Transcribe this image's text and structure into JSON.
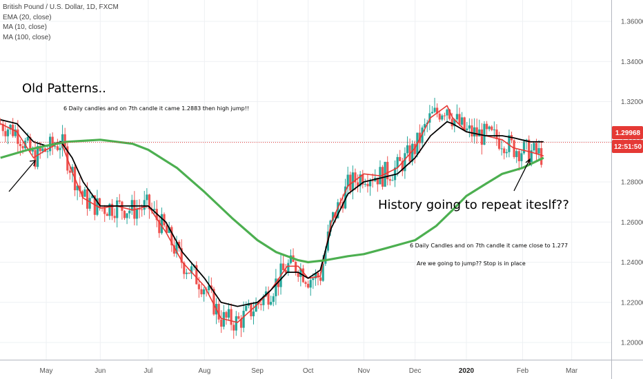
{
  "legend": {
    "symbol": "British Pound / U.S. Dollar, 1D, FXCM",
    "ema": "EMA (20, close)",
    "ma10": "MA (10, close)",
    "ma100": "MA (100, close)"
  },
  "price_badge": {
    "price": "1.29968",
    "timer": "12:51:50",
    "color": "#e53935"
  },
  "colors": {
    "up": "#26a69a",
    "down": "#ef5350",
    "ema": "#e53935",
    "ma10": "#000000",
    "ma100": "#4caf50",
    "badge": "#e53935"
  },
  "annotations": {
    "old_patterns": "Old Patterns..",
    "note_old": "6 Daily candles and on 7th candle it came 1.2883 then high jump!!",
    "history": "History going to repeat iteslf??",
    "note_new": "6 Daily Candles and on 7th candle it came close to 1.277",
    "question": "Are we going to jump?? Stop is in place"
  },
  "chart_data": {
    "type": "line",
    "title": "British Pound / U.S. Dollar, 1D, FXCM",
    "y_ticks": [
      "1.36000",
      "1.34000",
      "1.32000",
      "1.30000",
      "1.28000",
      "1.26000",
      "1.24000",
      "1.22000",
      "1.20000"
    ],
    "x_ticks": [
      {
        "label": "May",
        "t": 0.83
      },
      {
        "label": "Jun",
        "t": 1.81
      },
      {
        "label": "Jul",
        "t": 2.68
      },
      {
        "label": "Aug",
        "t": 3.7
      },
      {
        "label": "Sep",
        "t": 4.66
      },
      {
        "label": "Oct",
        "t": 5.58
      },
      {
        "label": "Nov",
        "t": 6.59
      },
      {
        "label": "Dec",
        "t": 7.52
      },
      {
        "label": "2020",
        "t": 8.45,
        "bold": true
      },
      {
        "label": "Feb",
        "t": 9.47
      },
      {
        "label": "Mar",
        "t": 10.36
      }
    ],
    "ylim": [
      1.185,
      1.37
    ],
    "current_price": 1.29968,
    "series": [
      {
        "name": "EMA (20, close)",
        "points": [
          [
            0,
            1.309
          ],
          [
            0.3,
            1.305
          ],
          [
            0.6,
            1.292
          ],
          [
            0.83,
            1.296
          ],
          [
            1.1,
            1.3
          ],
          [
            1.3,
            1.285
          ],
          [
            1.5,
            1.272
          ],
          [
            1.81,
            1.267
          ],
          [
            2.1,
            1.268
          ],
          [
            2.4,
            1.266
          ],
          [
            2.68,
            1.268
          ],
          [
            3.0,
            1.255
          ],
          [
            3.3,
            1.24
          ],
          [
            3.7,
            1.228
          ],
          [
            4.0,
            1.212
          ],
          [
            4.3,
            1.21
          ],
          [
            4.66,
            1.219
          ],
          [
            4.9,
            1.226
          ],
          [
            5.2,
            1.238
          ],
          [
            5.4,
            1.238
          ],
          [
            5.58,
            1.232
          ],
          [
            5.8,
            1.233
          ],
          [
            6.0,
            1.26
          ],
          [
            6.3,
            1.278
          ],
          [
            6.59,
            1.284
          ],
          [
            6.9,
            1.283
          ],
          [
            7.2,
            1.287
          ],
          [
            7.52,
            1.297
          ],
          [
            7.8,
            1.312
          ],
          [
            8.1,
            1.318
          ],
          [
            8.2,
            1.312
          ],
          [
            8.45,
            1.305
          ],
          [
            8.8,
            1.303
          ],
          [
            9.1,
            1.301
          ],
          [
            9.3,
            1.297
          ],
          [
            9.6,
            1.295
          ],
          [
            9.85,
            1.293
          ]
        ]
      },
      {
        "name": "MA (10, close)",
        "points": [
          [
            0,
            1.311
          ],
          [
            0.3,
            1.309
          ],
          [
            0.6,
            1.3
          ],
          [
            0.83,
            1.298
          ],
          [
            1.1,
            1.3
          ],
          [
            1.3,
            1.292
          ],
          [
            1.5,
            1.28
          ],
          [
            1.81,
            1.268
          ],
          [
            2.1,
            1.268
          ],
          [
            2.4,
            1.268
          ],
          [
            2.68,
            1.268
          ],
          [
            3.0,
            1.26
          ],
          [
            3.3,
            1.245
          ],
          [
            3.7,
            1.232
          ],
          [
            4.0,
            1.22
          ],
          [
            4.3,
            1.218
          ],
          [
            4.66,
            1.22
          ],
          [
            4.9,
            1.226
          ],
          [
            5.2,
            1.235
          ],
          [
            5.4,
            1.235
          ],
          [
            5.58,
            1.232
          ],
          [
            5.8,
            1.236
          ],
          [
            6.0,
            1.257
          ],
          [
            6.3,
            1.274
          ],
          [
            6.59,
            1.28
          ],
          [
            6.9,
            1.282
          ],
          [
            7.2,
            1.284
          ],
          [
            7.52,
            1.292
          ],
          [
            7.8,
            1.303
          ],
          [
            8.1,
            1.31
          ],
          [
            8.2,
            1.309
          ],
          [
            8.45,
            1.305
          ],
          [
            8.8,
            1.303
          ],
          [
            9.1,
            1.303
          ],
          [
            9.3,
            1.302
          ],
          [
            9.6,
            1.3
          ],
          [
            9.85,
            1.3
          ]
        ]
      },
      {
        "name": "MA (100, close)",
        "points": [
          [
            0,
            1.292
          ],
          [
            0.5,
            1.296
          ],
          [
            0.83,
            1.298
          ],
          [
            1.2,
            1.3
          ],
          [
            1.81,
            1.301
          ],
          [
            2.4,
            1.299
          ],
          [
            2.68,
            1.296
          ],
          [
            3.2,
            1.287
          ],
          [
            3.7,
            1.275
          ],
          [
            4.2,
            1.262
          ],
          [
            4.66,
            1.251
          ],
          [
            5.0,
            1.245
          ],
          [
            5.4,
            1.241
          ],
          [
            5.58,
            1.24
          ],
          [
            5.9,
            1.241
          ],
          [
            6.3,
            1.243
          ],
          [
            6.59,
            1.244
          ],
          [
            7.0,
            1.247
          ],
          [
            7.52,
            1.251
          ],
          [
            7.9,
            1.258
          ],
          [
            8.2,
            1.266
          ],
          [
            8.45,
            1.273
          ],
          [
            8.8,
            1.279
          ],
          [
            9.1,
            1.284
          ],
          [
            9.47,
            1.287
          ],
          [
            9.85,
            1.292
          ]
        ]
      }
    ],
    "annotations": [
      "Old Patterns..",
      "6 Daily candles and on 7th candle it came 1.2883 then high jump!!",
      "History going to repeat iteslf??",
      "6 Daily Candles and on 7th candle it came close to 1.277",
      "Are we going to jump?? Stop is in place"
    ]
  }
}
